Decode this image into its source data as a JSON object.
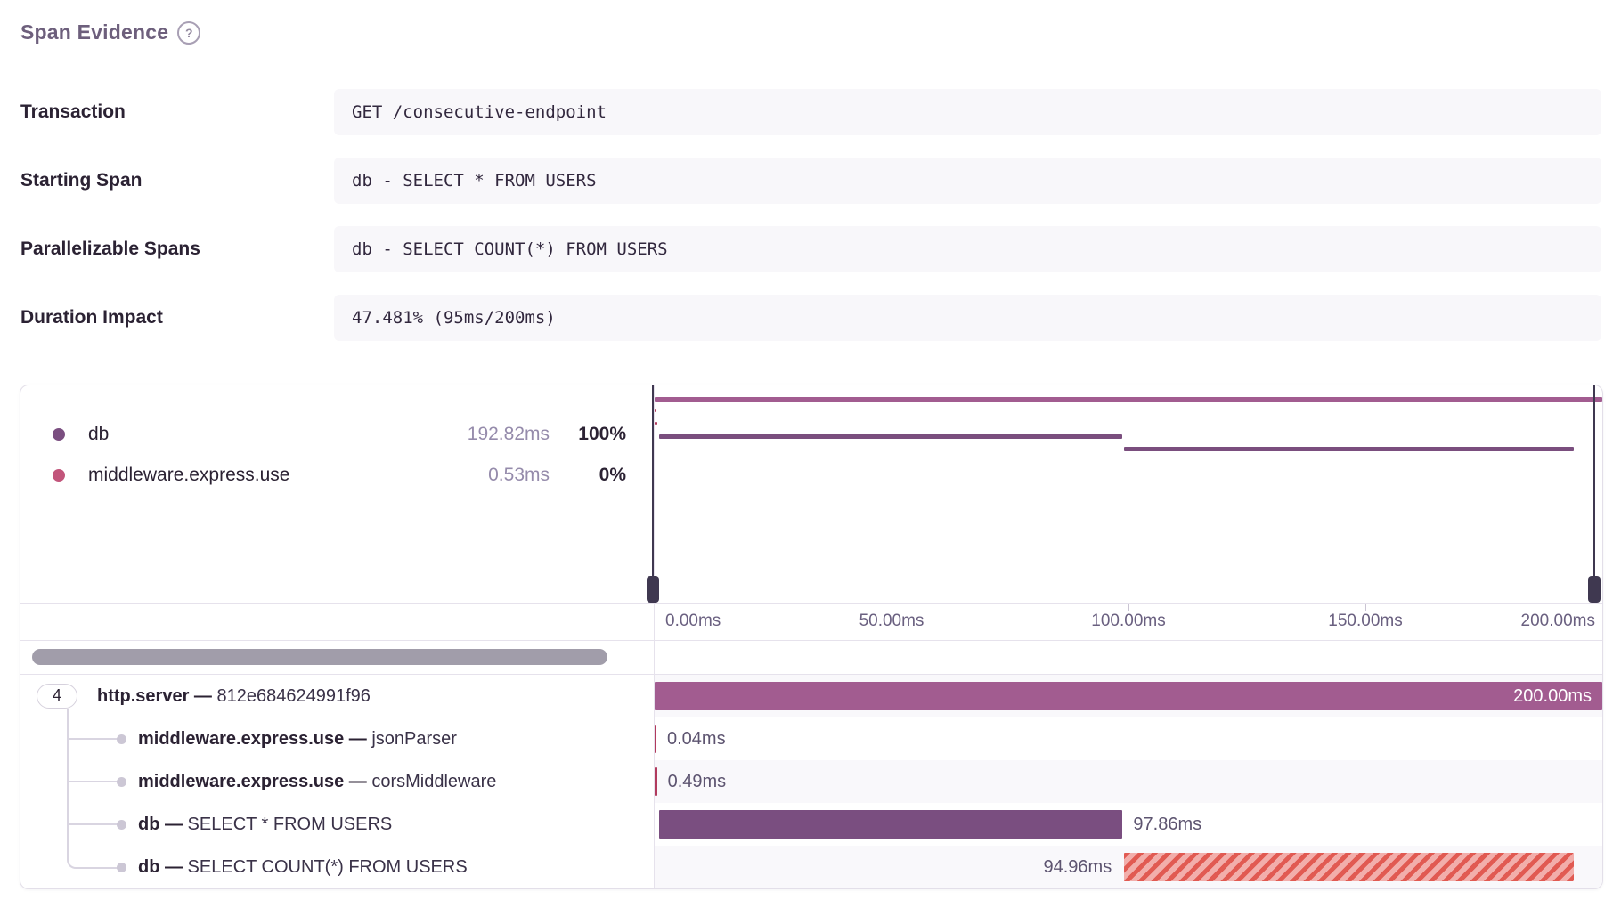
{
  "header": {
    "title": "Span Evidence",
    "help_icon": "?"
  },
  "fields": [
    {
      "label": "Transaction",
      "value": "GET /consecutive-endpoint"
    },
    {
      "label": "Starting Span",
      "value": "db - SELECT * FROM USERS"
    },
    {
      "label": "Parallelizable Spans",
      "value": "db - SELECT COUNT(*) FROM USERS"
    },
    {
      "label": "Duration Impact",
      "value": "47.481% (95ms/200ms)"
    }
  ],
  "trace_view": {
    "legend": [
      {
        "op": "db",
        "duration": "192.82ms",
        "percent": "100%",
        "color": "#7a4e80"
      },
      {
        "op": "middleware.express.use",
        "duration": "0.53ms",
        "percent": "0%",
        "color": "#c2557b"
      }
    ],
    "minimap": {
      "range_ms": [
        0,
        200
      ],
      "axis_labels": [
        "0.00ms",
        "50.00ms",
        "100.00ms",
        "150.00ms",
        "200.00ms"
      ],
      "axis_values_ms": [
        0,
        50,
        100,
        150,
        200
      ]
    },
    "colors": {
      "http": "#a25c90",
      "db": "#7a4e80",
      "middleware": "#b13a5d",
      "hatch_light": "#f2aeab",
      "hatch_dark": "#e15a52",
      "minimap_db": "#7a4e7e"
    },
    "spans": [
      {
        "depth": 0,
        "children_count": "4",
        "op": "http.server",
        "separator": "—",
        "description": "812e684624991f96",
        "start_ms": 0,
        "duration_ms": 200,
        "duration_label": "200.00ms",
        "color_key": "http",
        "label_position": "inside",
        "hatched": false
      },
      {
        "depth": 1,
        "op": "middleware.express.use",
        "separator": "—",
        "description": "jsonParser",
        "start_ms": 0,
        "duration_ms": 0.04,
        "duration_label": "0.04ms",
        "color_key": "middleware",
        "label_position": "after",
        "hatched": false
      },
      {
        "depth": 1,
        "op": "middleware.express.use",
        "separator": "—",
        "description": "corsMiddleware",
        "start_ms": 0,
        "duration_ms": 0.49,
        "duration_label": "0.49ms",
        "color_key": "middleware",
        "label_position": "after",
        "hatched": false
      },
      {
        "depth": 1,
        "op": "db",
        "separator": "—",
        "description": "SELECT * FROM USERS",
        "start_ms": 0.9,
        "duration_ms": 97.86,
        "duration_label": "97.86ms",
        "color_key": "db",
        "label_position": "after",
        "hatched": false
      },
      {
        "depth": 1,
        "op": "db",
        "separator": "—",
        "description": "SELECT COUNT(*) FROM USERS",
        "start_ms": 99.1,
        "duration_ms": 94.96,
        "duration_label": "94.96ms",
        "color_key": "db",
        "label_position": "before",
        "hatched": true
      }
    ]
  }
}
